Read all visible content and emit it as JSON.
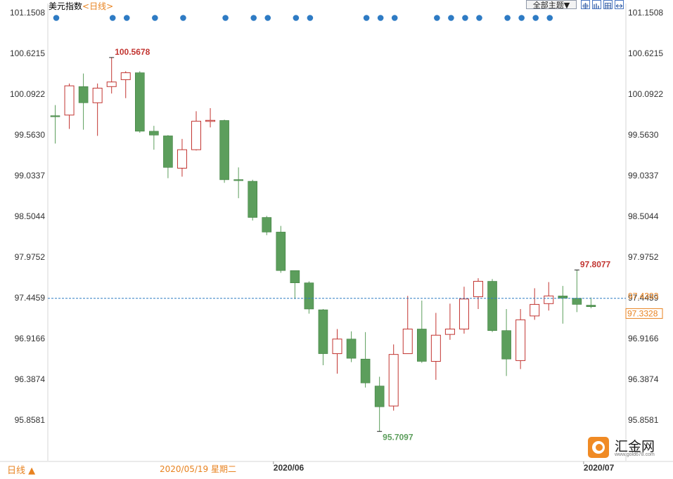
{
  "header": {
    "instrument": "美元指数",
    "period": "<日线>",
    "theme_button": "全部主题▼"
  },
  "footer": {
    "period_toggle": "日线 ▲",
    "cursor_date": "2020/05/19 星期二"
  },
  "logo": {
    "name": "汇金网",
    "url": "www.gold678.com"
  },
  "colors": {
    "up": "#c23531",
    "down": "#5c9e5c",
    "down_edge": "#3f7f3f",
    "dot": "#2e7bc4",
    "ref_line": "#2e7bc4",
    "price_tag": "#e8821f"
  },
  "chart_data": {
    "type": "candlestick",
    "title": "",
    "y_ticks": [
      "101.1508",
      "100.6215",
      "100.0922",
      "99.5630",
      "99.0337",
      "98.5044",
      "97.9752",
      "97.4459",
      "96.9166",
      "96.3874",
      "95.8581"
    ],
    "ylim": [
      95.5,
      101.2
    ],
    "x_month_labels": [
      {
        "label": "2020/06",
        "index": 16
      },
      {
        "label": "2020/07",
        "index": 38
      }
    ],
    "candles": [
      {
        "o": 99.81,
        "h": 99.95,
        "l": 99.45,
        "c": 99.8
      },
      {
        "o": 99.82,
        "h": 100.23,
        "l": 99.64,
        "c": 100.2
      },
      {
        "o": 100.19,
        "h": 100.36,
        "l": 99.63,
        "c": 99.98
      },
      {
        "o": 99.98,
        "h": 100.23,
        "l": 99.55,
        "c": 100.17
      },
      {
        "o": 100.19,
        "h": 100.5678,
        "l": 100.1,
        "c": 100.25
      },
      {
        "o": 100.28,
        "h": 100.39,
        "l": 100.04,
        "c": 100.37
      },
      {
        "o": 100.37,
        "h": 100.39,
        "l": 99.59,
        "c": 99.61
      },
      {
        "o": 99.61,
        "h": 99.68,
        "l": 99.37,
        "c": 99.56
      },
      {
        "o": 99.55,
        "h": 99.56,
        "l": 99.0,
        "c": 99.14
      },
      {
        "o": 99.13,
        "h": 99.51,
        "l": 99.02,
        "c": 99.37
      },
      {
        "o": 99.37,
        "h": 99.87,
        "l": 99.36,
        "c": 99.74
      },
      {
        "o": 99.74,
        "h": 99.91,
        "l": 99.66,
        "c": 99.75
      },
      {
        "o": 99.75,
        "h": 99.76,
        "l": 98.94,
        "c": 98.98
      },
      {
        "o": 98.98,
        "h": 99.14,
        "l": 98.74,
        "c": 98.97
      },
      {
        "o": 98.96,
        "h": 98.98,
        "l": 98.45,
        "c": 98.49
      },
      {
        "o": 98.49,
        "h": 98.51,
        "l": 98.26,
        "c": 98.3
      },
      {
        "o": 98.3,
        "h": 98.38,
        "l": 97.77,
        "c": 97.8
      },
      {
        "o": 97.8,
        "h": 97.8,
        "l": 97.43,
        "c": 97.64
      },
      {
        "o": 97.64,
        "h": 97.66,
        "l": 97.24,
        "c": 97.3
      },
      {
        "o": 97.29,
        "h": 97.3,
        "l": 96.57,
        "c": 96.72
      },
      {
        "o": 96.72,
        "h": 97.04,
        "l": 96.46,
        "c": 96.91
      },
      {
        "o": 96.91,
        "h": 97.01,
        "l": 96.61,
        "c": 96.66
      },
      {
        "o": 96.65,
        "h": 97.0,
        "l": 96.28,
        "c": 96.34
      },
      {
        "o": 96.3,
        "h": 96.42,
        "l": 95.7097,
        "c": 96.03
      },
      {
        "o": 96.04,
        "h": 96.84,
        "l": 95.98,
        "c": 96.71
      },
      {
        "o": 96.72,
        "h": 97.47,
        "l": 96.72,
        "c": 97.04
      },
      {
        "o": 97.04,
        "h": 97.41,
        "l": 96.6,
        "c": 96.62
      },
      {
        "o": 96.62,
        "h": 97.25,
        "l": 96.38,
        "c": 96.96
      },
      {
        "o": 96.97,
        "h": 97.37,
        "l": 96.9,
        "c": 97.04
      },
      {
        "o": 97.04,
        "h": 97.59,
        "l": 96.98,
        "c": 97.43
      },
      {
        "o": 97.46,
        "h": 97.7,
        "l": 97.3,
        "c": 97.66
      },
      {
        "o": 97.66,
        "h": 97.69,
        "l": 97.0,
        "c": 97.02
      },
      {
        "o": 97.02,
        "h": 97.3,
        "l": 96.43,
        "c": 96.65
      },
      {
        "o": 96.63,
        "h": 97.3,
        "l": 96.52,
        "c": 97.16
      },
      {
        "o": 97.21,
        "h": 97.57,
        "l": 97.16,
        "c": 97.36
      },
      {
        "o": 97.37,
        "h": 97.65,
        "l": 97.28,
        "c": 97.47
      },
      {
        "o": 97.47,
        "h": 97.6,
        "l": 97.11,
        "c": 97.44
      },
      {
        "o": 97.44,
        "h": 97.8077,
        "l": 97.26,
        "c": 97.36
      },
      {
        "o": 97.35,
        "h": 97.45,
        "l": 97.31,
        "c": 97.33
      }
    ],
    "annotations": [
      {
        "label": "100.5678",
        "index": 4,
        "value": 100.5678,
        "kind": "high"
      },
      {
        "label": "97.8077",
        "index": 37,
        "value": 97.8077,
        "kind": "high"
      },
      {
        "label": "95.7097",
        "index": 23,
        "value": 95.7097,
        "kind": "low"
      }
    ],
    "reference_line": {
      "value": 97.4393,
      "label": "97.4393"
    },
    "last_price": {
      "value": 97.3328,
      "label": "97.3328"
    },
    "event_dot_indices": [
      0,
      4,
      5,
      7,
      9,
      12,
      14,
      15,
      17,
      18,
      22,
      23,
      24,
      27,
      28,
      29,
      30,
      32,
      33,
      34,
      35
    ]
  }
}
